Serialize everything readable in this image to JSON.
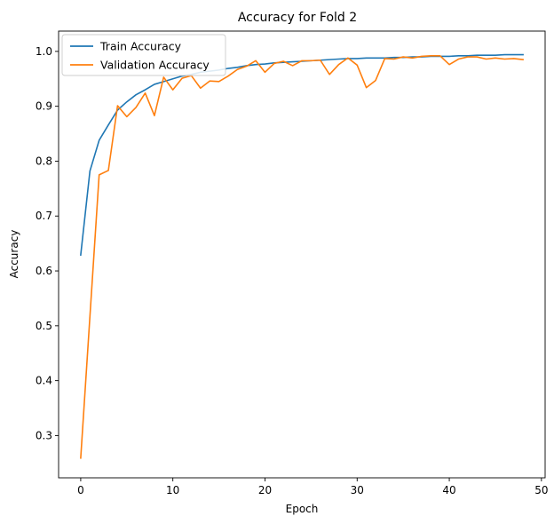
{
  "chart_data": {
    "type": "line",
    "title": "Accuracy for Fold 2",
    "xlabel": "Epoch",
    "ylabel": "Accuracy",
    "xlim": [
      -2.4,
      50.4
    ],
    "ylim": [
      0.223,
      1.037
    ],
    "xticks": [
      0,
      10,
      20,
      30,
      40,
      50
    ],
    "yticks": [
      0.3,
      0.4,
      0.5,
      0.6,
      0.7,
      0.8,
      0.9,
      1.0
    ],
    "ytick_labels": [
      "0.3",
      "0.4",
      "0.5",
      "0.6",
      "0.7",
      "0.8",
      "0.9",
      "1.0"
    ],
    "grid": false,
    "legend_position": "top-left",
    "x": [
      0,
      1,
      2,
      3,
      4,
      5,
      6,
      7,
      8,
      9,
      10,
      11,
      12,
      13,
      14,
      15,
      16,
      17,
      18,
      19,
      20,
      21,
      22,
      23,
      24,
      25,
      26,
      27,
      28,
      29,
      30,
      31,
      32,
      33,
      34,
      35,
      36,
      37,
      38,
      39,
      40,
      41,
      42,
      43,
      44,
      45,
      46,
      47,
      48
    ],
    "series": [
      {
        "name": "Train Accuracy",
        "color": "#1f77b4",
        "values": [
          0.629,
          0.782,
          0.838,
          0.866,
          0.893,
          0.908,
          0.921,
          0.93,
          0.94,
          0.945,
          0.95,
          0.955,
          0.958,
          0.962,
          0.964,
          0.966,
          0.969,
          0.971,
          0.974,
          0.976,
          0.977,
          0.979,
          0.98,
          0.981,
          0.982,
          0.983,
          0.984,
          0.985,
          0.986,
          0.987,
          0.987,
          0.988,
          0.988,
          0.988,
          0.989,
          0.989,
          0.99,
          0.99,
          0.991,
          0.991,
          0.991,
          0.992,
          0.992,
          0.993,
          0.993,
          0.993,
          0.994,
          0.994,
          0.994
        ]
      },
      {
        "name": "Validation Accuracy",
        "color": "#ff7f0e",
        "values": [
          0.259,
          0.517,
          0.775,
          0.783,
          0.901,
          0.881,
          0.898,
          0.924,
          0.883,
          0.953,
          0.93,
          0.951,
          0.956,
          0.933,
          0.946,
          0.945,
          0.955,
          0.967,
          0.973,
          0.983,
          0.962,
          0.978,
          0.982,
          0.974,
          0.983,
          0.983,
          0.984,
          0.958,
          0.976,
          0.988,
          0.975,
          0.934,
          0.947,
          0.987,
          0.986,
          0.99,
          0.988,
          0.991,
          0.992,
          0.992,
          0.976,
          0.986,
          0.99,
          0.99,
          0.986,
          0.988,
          0.986,
          0.987,
          0.985
        ]
      }
    ]
  }
}
